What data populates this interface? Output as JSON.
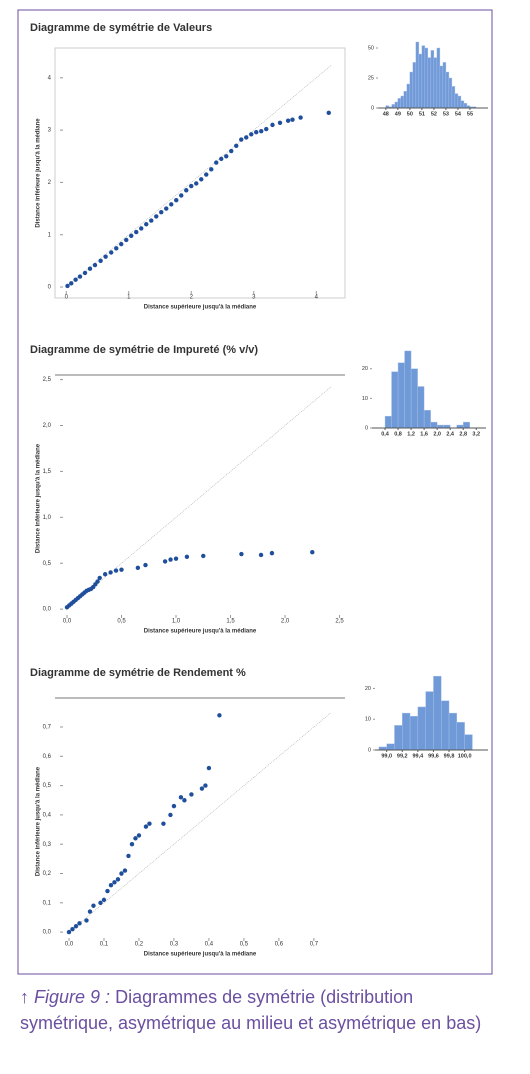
{
  "chart_data": [
    {
      "type": "scatter",
      "title": "Diagramme de symétrie de Valeurs",
      "x_label": "Distance supérieure jusqu'à la médiane",
      "y_label": "Distance inférieure jusqu'à la médiane",
      "color": "#1f4e9c",
      "diagonal": true,
      "x": [
        0.02,
        0.08,
        0.15,
        0.22,
        0.3,
        0.38,
        0.46,
        0.55,
        0.63,
        0.72,
        0.8,
        0.88,
        0.96,
        1.04,
        1.12,
        1.2,
        1.28,
        1.36,
        1.44,
        1.52,
        1.6,
        1.68,
        1.76,
        1.84,
        1.92,
        2.0,
        2.08,
        2.16,
        2.24,
        2.32,
        2.4,
        2.48,
        2.56,
        2.64,
        2.72,
        2.8,
        2.88,
        2.96,
        3.04,
        3.12,
        3.2,
        3.3,
        3.42,
        3.55,
        3.62,
        3.75,
        4.2
      ],
      "y": [
        0.02,
        0.07,
        0.14,
        0.2,
        0.27,
        0.35,
        0.42,
        0.5,
        0.58,
        0.66,
        0.74,
        0.82,
        0.9,
        0.98,
        1.05,
        1.12,
        1.2,
        1.27,
        1.35,
        1.43,
        1.5,
        1.58,
        1.66,
        1.75,
        1.85,
        1.93,
        1.98,
        2.06,
        2.15,
        2.25,
        2.38,
        2.45,
        2.5,
        2.6,
        2.7,
        2.82,
        2.86,
        2.92,
        2.96,
        2.98,
        3.02,
        3.1,
        3.14,
        3.18,
        3.2,
        3.24,
        3.33
      ],
      "xlim": [
        -0.18,
        4.46
      ],
      "ylim": [
        -0.21,
        4.57
      ],
      "xticks": [
        0,
        1,
        2,
        3,
        4
      ],
      "yticks": [
        0,
        1,
        2,
        3,
        4
      ]
    },
    {
      "type": "histogram",
      "color": "#7099d8",
      "bins": [
        48,
        48.25,
        48.5,
        48.75,
        49,
        49.25,
        49.5,
        49.75,
        50,
        50.25,
        50.5,
        50.75,
        51,
        51.25,
        51.5,
        51.75,
        52,
        52.25,
        52.5,
        52.75,
        53,
        53.25,
        53.5,
        53.75,
        54,
        54.25,
        54.5,
        54.75,
        55,
        55.25,
        55.5
      ],
      "counts": [
        2,
        1,
        3,
        5,
        8,
        10,
        14,
        20,
        30,
        38,
        55,
        45,
        52,
        50,
        42,
        48,
        42,
        50,
        35,
        38,
        30,
        25,
        18,
        12,
        10,
        6,
        4,
        2,
        1,
        1
      ],
      "xlim": [
        47.35,
        56.5
      ],
      "ylim": [
        0,
        65
      ],
      "xticks": [
        48,
        49,
        50,
        51,
        52,
        53,
        54,
        55
      ],
      "yticks": [
        0,
        25,
        50
      ]
    },
    {
      "type": "scatter",
      "title": "Diagramme de symétrie de Impureté (% v/v)",
      "x_label": "Distance supérieure jusqu'à la médiane",
      "y_label": "Distance inférieure jusqu'à la médiane",
      "color": "#1f4e9c",
      "diagonal": true,
      "x": [
        0.0,
        0.02,
        0.04,
        0.06,
        0.08,
        0.1,
        0.12,
        0.14,
        0.16,
        0.18,
        0.2,
        0.22,
        0.24,
        0.26,
        0.28,
        0.3,
        0.35,
        0.4,
        0.45,
        0.5,
        0.65,
        0.72,
        0.9,
        0.95,
        1.0,
        1.1,
        1.25,
        1.6,
        1.78,
        1.88,
        2.25
      ],
      "y": [
        0.02,
        0.04,
        0.06,
        0.08,
        0.1,
        0.12,
        0.14,
        0.16,
        0.18,
        0.2,
        0.21,
        0.22,
        0.24,
        0.27,
        0.3,
        0.34,
        0.38,
        0.4,
        0.42,
        0.43,
        0.45,
        0.48,
        0.52,
        0.54,
        0.55,
        0.57,
        0.58,
        0.6,
        0.59,
        0.61,
        0.62
      ],
      "xlim": [
        -0.11,
        2.55
      ],
      "ylim": [
        -0.14,
        2.55
      ],
      "xticks": [
        {
          "value": 0,
          "label": "0,0"
        },
        {
          "value": 0.5,
          "label": "0,5"
        },
        {
          "value": 1,
          "label": "1,0"
        },
        {
          "value": 1.5,
          "label": "1,5"
        },
        {
          "value": 2,
          "label": "2,0"
        },
        {
          "value": 2.5,
          "label": "2,5"
        }
      ],
      "yticks": [
        {
          "value": 0,
          "label": "0,0"
        },
        {
          "value": 0.5,
          "label": "0,5"
        },
        {
          "value": 1,
          "label": "1,0"
        },
        {
          "value": 1.5,
          "label": "1,5"
        },
        {
          "value": 2,
          "label": "2,0"
        },
        {
          "value": 2.5,
          "label": "2,5"
        }
      ]
    },
    {
      "type": "histogram",
      "color": "#7099d8",
      "bins": [
        0.4,
        0.6,
        0.8,
        1.0,
        1.2,
        1.4,
        1.6,
        1.8,
        2.0,
        2.2,
        2.4,
        2.6,
        2.8,
        3.0,
        3.2
      ],
      "counts": [
        4,
        19,
        22,
        26,
        20,
        14,
        6,
        2,
        1,
        1,
        0,
        1,
        2,
        0
      ],
      "xlim": [
        0.0,
        3.5
      ],
      "ylim": [
        0,
        28
      ],
      "xticks": [
        {
          "value": 0.4,
          "label": "0,4"
        },
        {
          "value": 0.8,
          "label": "0,8"
        },
        {
          "value": 1.2,
          "label": "1,2"
        },
        {
          "value": 1.6,
          "label": "1,6"
        },
        {
          "value": 2.0,
          "label": "2,0"
        },
        {
          "value": 2.4,
          "label": "2,4"
        },
        {
          "value": 2.8,
          "label": "2,8"
        },
        {
          "value": 3.2,
          "label": "3,2"
        }
      ],
      "yticks": [
        0,
        10,
        20
      ]
    },
    {
      "type": "scatter",
      "title": "Diagramme de symétrie de Rendement %",
      "x_label": "Distance supérieure jusqu'à la médiane",
      "y_label": "Distance inférieure jusqu'à la médiane",
      "color": "#1f4e9c",
      "diagonal": true,
      "x": [
        0,
        0.01,
        0.02,
        0.03,
        0.05,
        0.06,
        0.07,
        0.09,
        0.1,
        0.11,
        0.12,
        0.13,
        0.14,
        0.15,
        0.16,
        0.17,
        0.18,
        0.19,
        0.2,
        0.22,
        0.23,
        0.27,
        0.29,
        0.3,
        0.32,
        0.33,
        0.35,
        0.38,
        0.39,
        0.4,
        0.43
      ],
      "y": [
        0,
        0.01,
        0.02,
        0.03,
        0.04,
        0.07,
        0.09,
        0.1,
        0.11,
        0.14,
        0.16,
        0.17,
        0.18,
        0.2,
        0.21,
        0.26,
        0.3,
        0.32,
        0.33,
        0.36,
        0.37,
        0.37,
        0.4,
        0.43,
        0.46,
        0.45,
        0.47,
        0.49,
        0.5,
        0.56,
        0.74
      ],
      "xlim": [
        -0.04,
        0.789
      ],
      "ylim": [
        -0.044,
        0.799
      ],
      "xticks": [
        {
          "value": 0,
          "label": "0,0"
        },
        {
          "value": 0.1,
          "label": "0,1"
        },
        {
          "value": 0.2,
          "label": "0,2"
        },
        {
          "value": 0.3,
          "label": "0,3"
        },
        {
          "value": 0.4,
          "label": "0,4"
        },
        {
          "value": 0.5,
          "label": "0,5"
        },
        {
          "value": 0.6,
          "label": "0,6"
        },
        {
          "value": 0.7,
          "label": "0,7"
        }
      ],
      "yticks": [
        {
          "value": 0,
          "label": "0,0"
        },
        {
          "value": 0.1,
          "label": "0,1"
        },
        {
          "value": 0.2,
          "label": "0,2"
        },
        {
          "value": 0.3,
          "label": "0,3"
        },
        {
          "value": 0.4,
          "label": "0,4"
        },
        {
          "value": 0.5,
          "label": "0,5"
        },
        {
          "value": 0.6,
          "label": "0,6"
        },
        {
          "value": 0.7,
          "label": "0,7"
        }
      ]
    },
    {
      "type": "histogram",
      "color": "#7099d8",
      "bins": [
        98.9,
        99.0,
        99.1,
        99.2,
        99.3,
        99.4,
        99.5,
        99.6,
        99.7,
        99.8,
        99.9,
        100.0,
        100.1
      ],
      "counts": [
        1,
        2,
        8,
        12,
        11,
        14,
        19,
        24,
        16,
        12,
        9,
        5
      ],
      "xlim": [
        98.85,
        100.3
      ],
      "ylim": [
        0,
        26
      ],
      "xticks": [
        {
          "value": 99.0,
          "label": "99,0"
        },
        {
          "value": 99.2,
          "label": "99,2"
        },
        {
          "value": 99.4,
          "label": "99,4"
        },
        {
          "value": 99.6,
          "label": "99,6"
        },
        {
          "value": 99.8,
          "label": "99,8"
        },
        {
          "value": 100.0,
          "label": "100,0"
        }
      ],
      "yticks": [
        0,
        10,
        20
      ]
    }
  ],
  "caption_marker": "↑",
  "caption_label": "Figure 9 :",
  "caption": "Diagrammes de symétrie (distribution symétrique, asymétrique au milieu et asymétrique en bas)"
}
